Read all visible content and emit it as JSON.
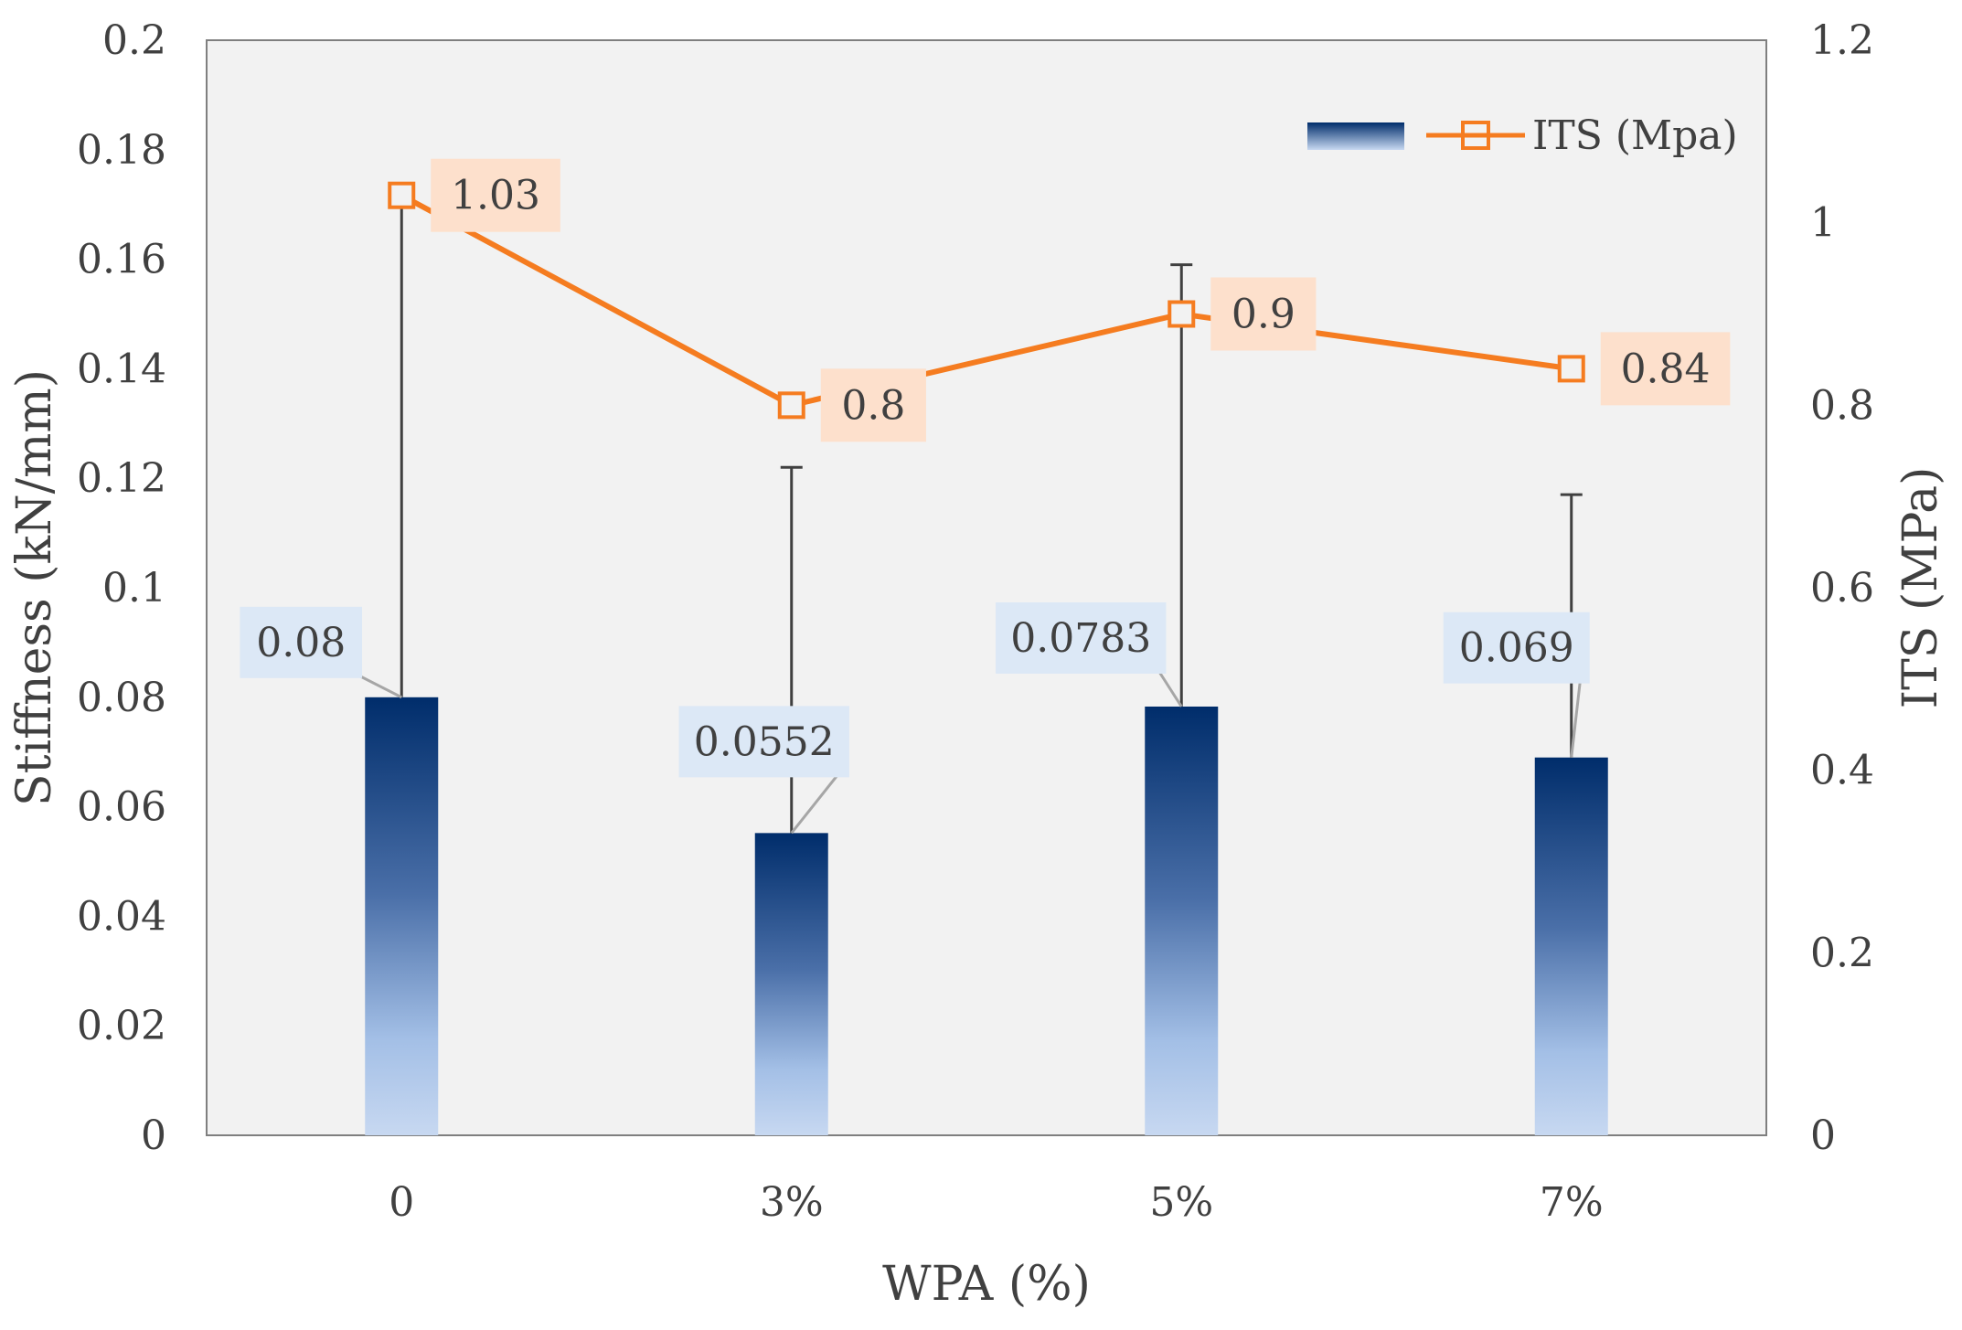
{
  "chart_data": {
    "type": "bar",
    "title": "",
    "categories": [
      "0",
      "3%",
      "5%",
      "7%"
    ],
    "xlabel": "WPA (%)",
    "ylabel": "Stiffness (kN/mm)",
    "y2label": "ITS (MPa)",
    "ylim": [
      0,
      0.2
    ],
    "y2lim": [
      0,
      1.2
    ],
    "yticks": [
      "0",
      "0.02",
      "0.04",
      "0.06",
      "0.08",
      "0.1",
      "0.12",
      "0.14",
      "0.16",
      "0.18",
      "0.2"
    ],
    "y2ticks": [
      "0",
      "0.2",
      "0.4",
      "0.6",
      "0.8",
      "1",
      "1.2"
    ],
    "grid": false,
    "legend_position": "top-right",
    "series": [
      {
        "name": "",
        "kind": "bar",
        "axis": "left",
        "values": [
          0.08,
          0.0552,
          0.0783,
          0.069
        ],
        "labels": [
          "0.08",
          "0.0552",
          "0.0783",
          "0.069"
        ],
        "error_upper": [
          0.173,
          0.122,
          0.159,
          0.117
        ],
        "color_top": "#002d6b",
        "color_bottom": "#c7d8f1"
      },
      {
        "name": "ITS (Mpa)",
        "kind": "line",
        "axis": "right",
        "values": [
          1.03,
          0.8,
          0.9,
          0.84
        ],
        "labels": [
          "1.03",
          "0.8",
          "0.9",
          "0.84"
        ],
        "color": "#f57c20",
        "label_bg": "#fde0cc"
      }
    ],
    "bar_label_bg": "#dce8f6",
    "plot_bg": "#f2f2f2"
  }
}
